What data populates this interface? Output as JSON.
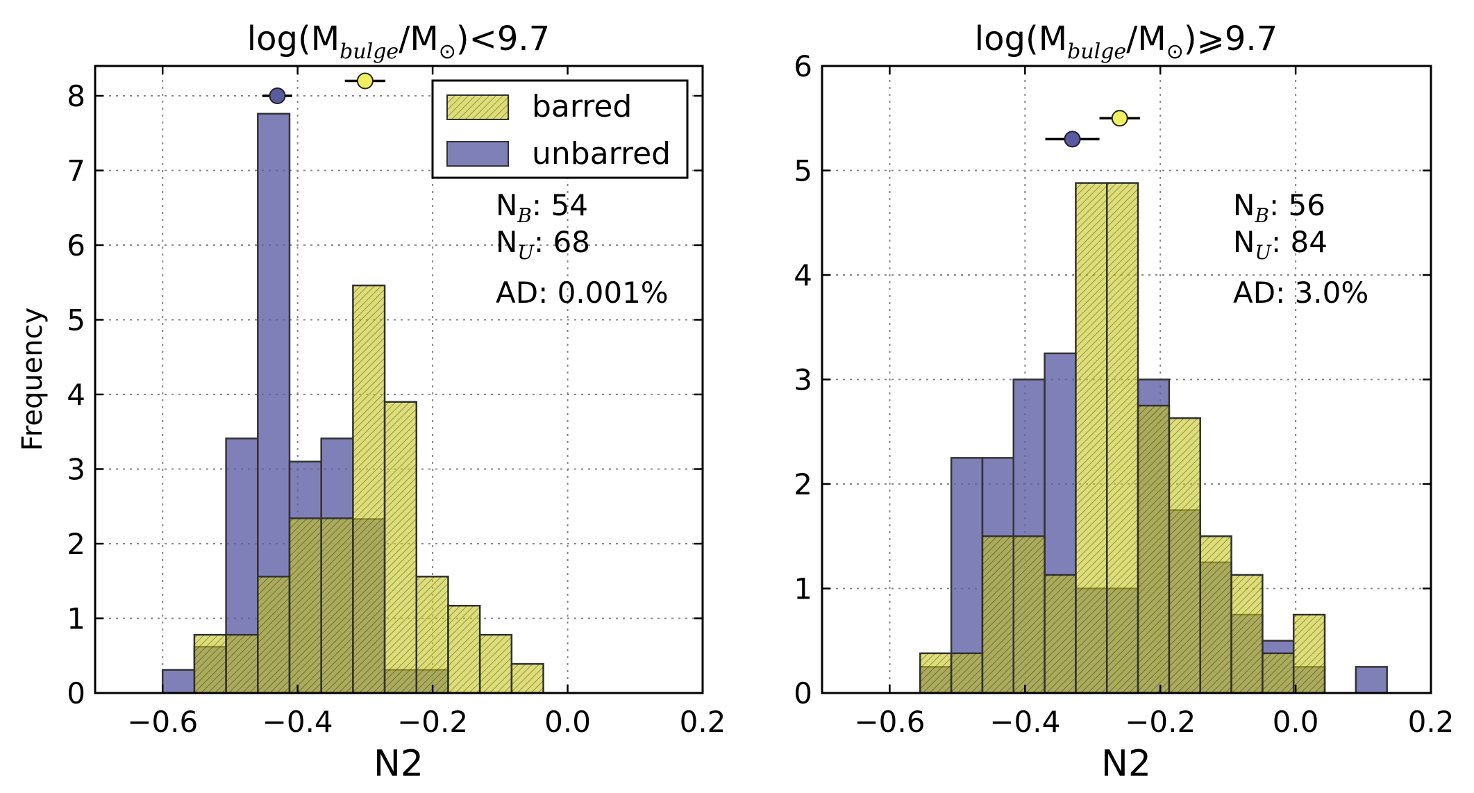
{
  "colors": {
    "barred": "#c8c81e",
    "unbarred": "#6060a8",
    "grid": "#888888",
    "edge": "#333333"
  },
  "legend": {
    "barred_label": "barred",
    "unbarred_label": "unbarred"
  },
  "chart_data": [
    {
      "type": "bar",
      "title": {
        "prefix": "log(M",
        "sub1": "bulge",
        "mid": "/M",
        "sub2": "⊙",
        "suffix": ")<9.7"
      },
      "xlabel": "N2",
      "ylabel": "Frequency",
      "xlim": [
        -0.7,
        0.2
      ],
      "ylim": [
        0,
        8.4
      ],
      "xticks": [
        -0.6,
        -0.4,
        -0.2,
        0.0,
        0.2
      ],
      "xtick_labels": [
        "−0.6",
        "−0.4",
        "−0.2",
        "0.0",
        "0.2"
      ],
      "yticks": [
        0,
        1,
        2,
        3,
        4,
        5,
        6,
        7,
        8
      ],
      "ytick_labels": [
        "0",
        "1",
        "2",
        "3",
        "4",
        "5",
        "6",
        "7",
        "8"
      ],
      "grid": true,
      "legend_position": "top-right",
      "bin_edges": [
        -0.6,
        -0.553,
        -0.506,
        -0.459,
        -0.412,
        -0.365,
        -0.318,
        -0.271,
        -0.224,
        -0.177,
        -0.13,
        -0.083,
        -0.036
      ],
      "series": [
        {
          "name": "unbarred",
          "values": [
            0.31,
            0.62,
            3.41,
            7.76,
            3.1,
            3.41,
            2.33,
            0.31,
            0.31,
            0,
            0,
            0
          ]
        },
        {
          "name": "barred",
          "values": [
            0,
            0.78,
            0.78,
            1.56,
            2.34,
            2.34,
            5.46,
            3.9,
            1.56,
            1.17,
            0.78,
            0.39
          ]
        }
      ],
      "markers": [
        {
          "series": "unbarred",
          "x": -0.43,
          "y": 8.0,
          "xerr": 0.022
        },
        {
          "series": "barred",
          "x": -0.3,
          "y": 8.2,
          "xerr": 0.03
        }
      ],
      "annotations": {
        "nb_label": "N",
        "nb_sub": "B",
        "nb_value": ": 54",
        "nu_label": "N",
        "nu_sub": "U",
        "nu_value": ": 68",
        "ad_text": "AD: 0.001%"
      }
    },
    {
      "type": "bar",
      "title": {
        "prefix": "log(M",
        "sub1": "bulge",
        "mid": "/M",
        "sub2": "⊙",
        "suffix": ")⩾9.7"
      },
      "xlabel": "N2",
      "ylabel": "",
      "xlim": [
        -0.7,
        0.2
      ],
      "ylim": [
        0,
        6
      ],
      "xticks": [
        -0.6,
        -0.4,
        -0.2,
        0.0,
        0.2
      ],
      "xtick_labels": [
        "−0.6",
        "−0.4",
        "−0.2",
        "0.0",
        "0.2"
      ],
      "yticks": [
        0,
        1,
        2,
        3,
        4,
        5,
        6
      ],
      "ytick_labels": [
        "0",
        "1",
        "2",
        "3",
        "4",
        "5",
        "6"
      ],
      "grid": true,
      "legend_position": "none",
      "bin_edges": [
        -0.555,
        -0.509,
        -0.463,
        -0.417,
        -0.371,
        -0.325,
        -0.279,
        -0.233,
        -0.187,
        -0.141,
        -0.095,
        -0.049,
        -0.003,
        0.043,
        0.089,
        0.135
      ],
      "series": [
        {
          "name": "unbarred",
          "values": [
            0.25,
            2.25,
            2.25,
            3.0,
            3.25,
            1.0,
            1.0,
            3.0,
            1.75,
            1.25,
            0.75,
            0.5,
            0.25,
            0,
            0.25
          ]
        },
        {
          "name": "barred",
          "values": [
            0.38,
            0.38,
            1.5,
            1.5,
            1.13,
            4.88,
            4.88,
            2.75,
            2.63,
            1.5,
            1.13,
            0.38,
            0.75,
            0,
            0
          ]
        }
      ],
      "markers": [
        {
          "series": "unbarred",
          "x": -0.33,
          "y": 5.3,
          "xerr": 0.04
        },
        {
          "series": "barred",
          "x": -0.26,
          "y": 5.5,
          "xerr": 0.03
        }
      ],
      "annotations": {
        "nb_label": "N",
        "nb_sub": "B",
        "nb_value": ": 56",
        "nu_label": "N",
        "nu_sub": "U",
        "nu_value": ": 84",
        "ad_text": "AD: 3.0%"
      }
    }
  ]
}
